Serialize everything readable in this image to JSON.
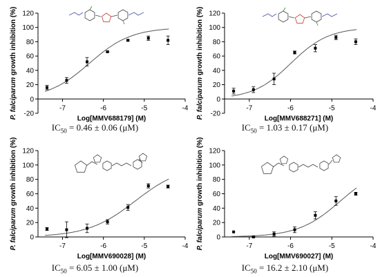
{
  "figure": {
    "panels": [
      {
        "compound_label": "MMV688179",
        "ic50": {
          "prefix": "IC",
          "sub": "50",
          "text": " = 0.46 ± 0.06 (μM)"
        },
        "chart_data": {
          "type": "scatter",
          "xlabel_prefix": "Log[",
          "xlabel_compound": "MMV688179",
          "xlabel_suffix": "] (M)",
          "ylabel_italic": "P. falciparum",
          "ylabel_rest": " growth inhibition (%)",
          "xlim": [
            -7.6,
            -4.0
          ],
          "ylim": [
            -20,
            120
          ],
          "x_ticks": [
            -7,
            -6,
            -5,
            -4
          ],
          "x_tick_labels": [
            "-7",
            "-6",
            "-5",
            "-4"
          ],
          "y_ticks": [
            -20,
            0,
            20,
            40,
            60,
            80,
            100,
            120
          ],
          "y_tick_labels": [
            "-20",
            "0",
            "20",
            "40",
            "60",
            "80",
            "100",
            "120"
          ],
          "points": [
            {
              "x": -7.38,
              "y": 16,
              "err": 3
            },
            {
              "x": -6.9,
              "y": 26,
              "err": 4
            },
            {
              "x": -6.4,
              "y": 52,
              "err": 6
            },
            {
              "x": -5.9,
              "y": 66,
              "err": 1
            },
            {
              "x": -5.4,
              "y": 82,
              "err": 1
            },
            {
              "x": -4.9,
              "y": 85,
              "err": 3
            },
            {
              "x": -4.42,
              "y": 82,
              "err": 6
            }
          ],
          "fit": {
            "bottom": 0,
            "top": 100,
            "log_ic50": -6.34,
            "hill": 0.85
          }
        }
      },
      {
        "compound_label": "MMV688271",
        "ic50": {
          "prefix": "IC",
          "sub": "50",
          "text": " = 1.03 ± 0.17 (μM)"
        },
        "chart_data": {
          "type": "scatter",
          "xlabel_prefix": "Log[",
          "xlabel_compound": "MMV688271",
          "xlabel_suffix": "] (M)",
          "ylabel_italic": "P. falciparum",
          "ylabel_rest": " growth inhibition (%)",
          "xlim": [
            -7.6,
            -4.0
          ],
          "ylim": [
            -20,
            120
          ],
          "x_ticks": [
            -7,
            -6,
            -5,
            -4
          ],
          "x_tick_labels": [
            "-7",
            "-6",
            "-5",
            "-4"
          ],
          "y_ticks": [
            -20,
            0,
            20,
            40,
            60,
            80,
            100,
            120
          ],
          "y_tick_labels": [
            "-20",
            "0",
            "20",
            "40",
            "60",
            "80",
            "100",
            "120"
          ],
          "points": [
            {
              "x": -7.38,
              "y": 11,
              "err": 4
            },
            {
              "x": -6.9,
              "y": 13,
              "err": 4
            },
            {
              "x": -6.4,
              "y": 28,
              "err": 8
            },
            {
              "x": -5.9,
              "y": 65,
              "err": 2
            },
            {
              "x": -5.4,
              "y": 71,
              "err": 5
            },
            {
              "x": -4.9,
              "y": 86,
              "err": 3
            },
            {
              "x": -4.42,
              "y": 80,
              "err": 4
            }
          ],
          "fit": {
            "bottom": 0,
            "top": 100,
            "log_ic50": -5.99,
            "hill": 0.95
          }
        }
      },
      {
        "compound_label": "MMV690028",
        "ic50": {
          "prefix": "IC",
          "sub": "50",
          "text": " = 6.05 ± 1.00 (μM)"
        },
        "chart_data": {
          "type": "scatter",
          "xlabel_prefix": "Log[",
          "xlabel_compound": "MMV690028",
          "xlabel_suffix": "] (M)",
          "ylabel_italic": "P. falciparum",
          "ylabel_rest": " growth inhibition (%)",
          "xlim": [
            -7.6,
            -4.0
          ],
          "ylim": [
            0,
            120
          ],
          "x_ticks": [
            -7,
            -6,
            -5,
            -4
          ],
          "x_tick_labels": [
            "-7",
            "-6",
            "-5",
            "-4"
          ],
          "y_ticks": [
            0,
            20,
            40,
            60,
            80,
            100,
            120
          ],
          "y_tick_labels": [
            "0",
            "20",
            "40",
            "60",
            "80",
            "100",
            "120"
          ],
          "points": [
            {
              "x": -7.38,
              "y": 11,
              "err": 2
            },
            {
              "x": -6.9,
              "y": 10,
              "err": 11
            },
            {
              "x": -6.4,
              "y": 12,
              "err": 6
            },
            {
              "x": -5.9,
              "y": 21,
              "err": 3
            },
            {
              "x": -5.4,
              "y": 41,
              "err": 4
            },
            {
              "x": -4.9,
              "y": 71,
              "err": 3
            },
            {
              "x": -4.42,
              "y": 70,
              "err": 2
            }
          ],
          "fit": {
            "bottom": 0,
            "top": 100,
            "log_ic50": -5.22,
            "hill": 0.75
          }
        }
      },
      {
        "compound_label": "MMV690027",
        "ic50": {
          "prefix": "IC",
          "sub": "50",
          "text": " = 16.2 ± 2.10 (μM)"
        },
        "chart_data": {
          "type": "scatter",
          "xlabel_prefix": "Log[",
          "xlabel_compound": "MMV690027",
          "xlabel_suffix": "] (M)",
          "ylabel_italic": "P. falciparum",
          "ylabel_rest": " growth inhibition (%)",
          "xlim": [
            -7.6,
            -4.0
          ],
          "ylim": [
            0,
            120
          ],
          "x_ticks": [
            -7,
            -6,
            -5,
            -4
          ],
          "x_tick_labels": [
            "-7",
            "-6",
            "-5",
            "-4"
          ],
          "y_ticks": [
            0,
            20,
            40,
            60,
            80,
            100,
            120
          ],
          "y_tick_labels": [
            "0",
            "20",
            "40",
            "60",
            "80",
            "100",
            "120"
          ],
          "points": [
            {
              "x": -7.38,
              "y": 7,
              "err": 0
            },
            {
              "x": -6.9,
              "y": 0,
              "err": 1
            },
            {
              "x": -6.4,
              "y": 4,
              "err": 3
            },
            {
              "x": -5.9,
              "y": 10,
              "err": 4
            },
            {
              "x": -5.4,
              "y": 30,
              "err": 5
            },
            {
              "x": -4.9,
              "y": 50,
              "err": 6
            },
            {
              "x": -4.42,
              "y": 60,
              "err": 2
            }
          ],
          "fit": {
            "bottom": 0,
            "top": 100,
            "log_ic50": -4.79,
            "hill": 0.85
          }
        }
      }
    ]
  }
}
